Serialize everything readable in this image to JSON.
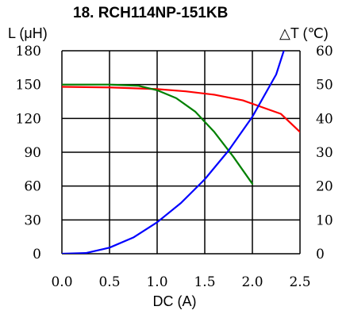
{
  "chart_data": {
    "type": "line",
    "title": "18. RCH114NP-151KB",
    "xlabel": "DC (A)",
    "ylabel_left": "L (μH)",
    "ylabel_right": "△T (℃)",
    "xlim": [
      0,
      2.5
    ],
    "ylim_left": [
      0,
      180
    ],
    "ylim_right": [
      0,
      60
    ],
    "x_ticks": [
      "0.0",
      "0.5",
      "1.0",
      "1.5",
      "2.0",
      "2.5"
    ],
    "y_ticks_left": [
      "0",
      "30",
      "60",
      "90",
      "120",
      "150",
      "180"
    ],
    "y_ticks_right": [
      "0",
      "10",
      "20",
      "30",
      "40",
      "50",
      "60"
    ],
    "grid": true,
    "series": [
      {
        "color": "#ff0000",
        "axis": "left",
        "x": [
          0,
          0.5,
          1.0,
          1.3,
          1.6,
          1.9,
          2.1,
          2.3,
          2.5
        ],
        "y": [
          148,
          147.5,
          146,
          144,
          141,
          136,
          130,
          124,
          108
        ]
      },
      {
        "color": "#008000",
        "axis": "left",
        "x": [
          0,
          0.5,
          0.8,
          1.0,
          1.2,
          1.4,
          1.6,
          1.8,
          2.0
        ],
        "y": [
          150,
          150,
          149,
          145,
          138,
          126,
          108,
          86,
          62
        ]
      },
      {
        "color": "#0000ff",
        "axis": "right",
        "x": [
          0,
          0.25,
          0.5,
          0.75,
          1.0,
          1.25,
          1.5,
          1.75,
          2.0,
          2.25,
          2.33
        ],
        "y": [
          0,
          0.2,
          1.8,
          4.8,
          9.3,
          15,
          22,
          30.5,
          40.5,
          53,
          60
        ]
      }
    ]
  }
}
